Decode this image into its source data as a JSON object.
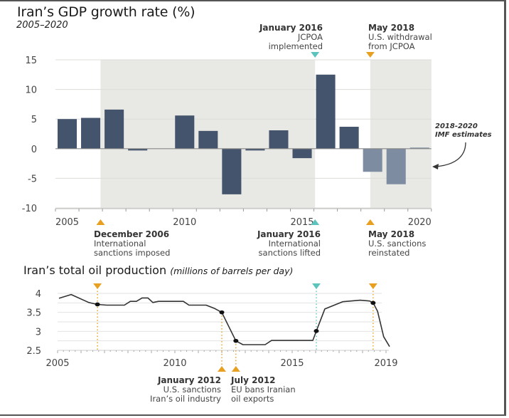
{
  "chart_data": [
    {
      "type": "bar",
      "title": "Iran’s GDP growth rate (%)",
      "subtitle": "2005–2020",
      "xlabel": "",
      "ylabel": "",
      "ylim": [
        -10,
        15
      ],
      "yticks": [
        15,
        10,
        5,
        0,
        -5,
        -10
      ],
      "xtick_labels": [
        "2005",
        "2010",
        "2015",
        "2020"
      ],
      "xtick_years": [
        2005,
        2010,
        2015,
        2020
      ],
      "grid": true,
      "categories": [
        2005,
        2006,
        2007,
        2008,
        2009,
        2010,
        2011,
        2012,
        2013,
        2014,
        2015,
        2016,
        2017,
        2018,
        2019,
        2020
      ],
      "values": [
        5.0,
        5.2,
        6.6,
        -0.3,
        0.0,
        5.6,
        3.0,
        -7.7,
        -0.3,
        3.1,
        -1.6,
        12.5,
        3.7,
        -3.9,
        -6.0,
        0.1
      ],
      "estimated_from": 2018,
      "colors": {
        "actual": "#44546c",
        "estimate": "#7d8ca0",
        "shading": "#e8e8e4",
        "orange": "#e8a020",
        "teal": "#5cc3bd"
      },
      "shaded_periods": [
        [
          2006.92,
          2016.05
        ],
        [
          2018.4,
          2021.0
        ]
      ],
      "annotation_note": {
        "line1": "2018-2020",
        "line2": "IMF estimates"
      },
      "top_events": [
        {
          "date": "January 2016",
          "text1": "JCPOA",
          "text2": "implemented",
          "year": 2016.05,
          "color": "teal"
        },
        {
          "date": "May 2018",
          "text1": "U.S. withdrawal",
          "text2": "from JCPOA",
          "year": 2018.4,
          "color": "orange"
        }
      ],
      "bottom_events": [
        {
          "date": "December 2006",
          "text1": "International",
          "text2": "sanctions imposed",
          "year": 2006.92,
          "color": "orange"
        },
        {
          "date": "January 2016",
          "text1": "International",
          "text2": "sanctions lifted",
          "year": 2016.05,
          "color": "teal"
        },
        {
          "date": "May 2018",
          "text1": "U.S. sanctions",
          "text2": "reinstated",
          "year": 2018.4,
          "color": "orange"
        }
      ]
    },
    {
      "type": "line",
      "title": "Iran’s total oil production",
      "unit": "(millions of barrels per day)",
      "ylim": [
        2.5,
        4.0
      ],
      "yticks": [
        4,
        3.5,
        3,
        2.5
      ],
      "ytick_labels": [
        "4",
        "3.5",
        "3",
        "2.5"
      ],
      "xlim": [
        2005,
        2019
      ],
      "xtick_labels": [
        "2005",
        "2010",
        "2015",
        "2019"
      ],
      "xtick_years": [
        2005,
        2010,
        2015,
        2019
      ],
      "grid": true,
      "x": [
        2005.06,
        2005.58,
        2006.33,
        2006.7,
        2007.09,
        2007.85,
        2008.1,
        2008.36,
        2008.6,
        2008.85,
        2009.06,
        2009.3,
        2010.36,
        2010.6,
        2011.33,
        2011.7,
        2012.0,
        2012.6,
        2012.9,
        2013.85,
        2014.12,
        2015.88,
        2016.03,
        2016.39,
        2017.15,
        2017.9,
        2018.3,
        2018.45,
        2018.64,
        2018.9,
        2019.15
      ],
      "y": [
        3.87,
        3.97,
        3.76,
        3.71,
        3.69,
        3.69,
        3.79,
        3.79,
        3.88,
        3.88,
        3.76,
        3.79,
        3.79,
        3.69,
        3.69,
        3.6,
        3.5,
        2.75,
        2.65,
        2.65,
        2.76,
        2.76,
        3.01,
        3.59,
        3.78,
        3.82,
        3.8,
        3.75,
        3.53,
        2.86,
        2.6
      ],
      "markers": [
        {
          "year": 2006.7,
          "value": 3.71
        },
        {
          "year": 2012.0,
          "value": 3.5
        },
        {
          "year": 2012.6,
          "value": 2.75
        },
        {
          "year": 2016.03,
          "value": 3.01
        },
        {
          "year": 2018.45,
          "value": 3.75
        }
      ],
      "top_events": [
        {
          "year": 2006.7,
          "color": "orange"
        },
        {
          "year": 2016.03,
          "color": "teal"
        },
        {
          "year": 2018.45,
          "color": "orange"
        }
      ],
      "bottom_events": [
        {
          "date": "January 2012",
          "text1": "U.S. sanctions",
          "text2": "Iran’s oil industry",
          "year": 2012.0,
          "color": "orange"
        },
        {
          "date": "July 2012",
          "text1": "EU bans Iranian",
          "text2": "oil exports",
          "year": 2012.6,
          "color": "orange"
        }
      ]
    }
  ]
}
